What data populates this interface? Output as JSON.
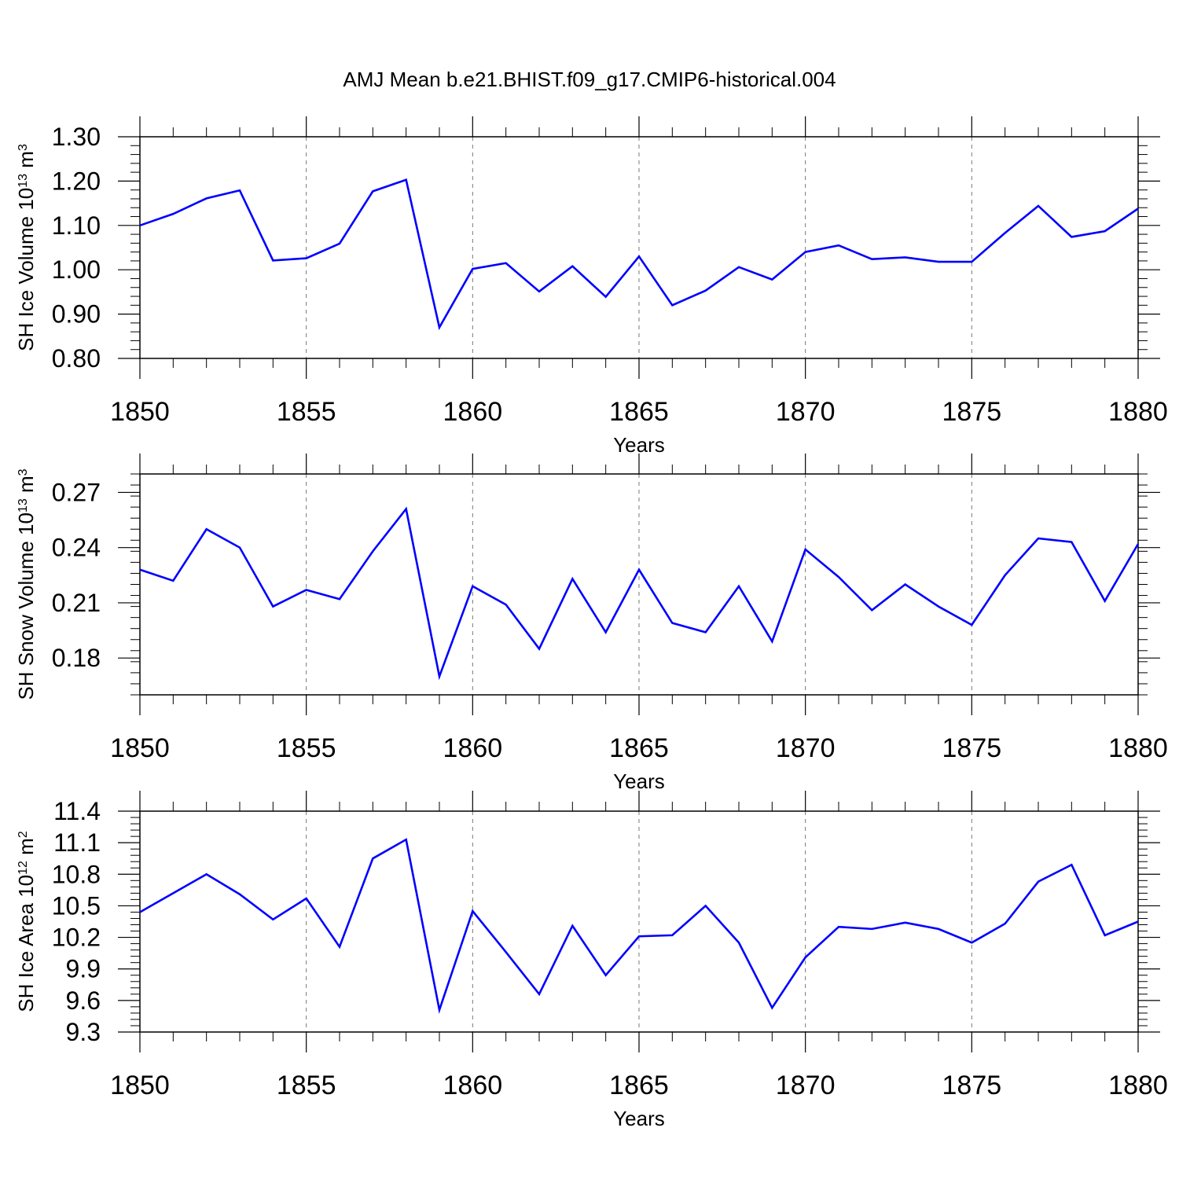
{
  "figure": {
    "title": "AMJ Mean b.e21.BHIST.f09_g17.CMIP6-historical.004"
  },
  "chart_data": [
    {
      "type": "line",
      "ylabel": {
        "main": "SH Ice Volume 10",
        "exp": "13",
        "unit": " m",
        "unit_exp": "3"
      },
      "xlabel": "Years",
      "xlim": [
        1850,
        1880
      ],
      "ylim": [
        0.8,
        1.3
      ],
      "yticks": [
        0.8,
        0.9,
        1.0,
        1.1,
        1.2,
        1.3
      ],
      "ytick_labels": [
        "0.80",
        "0.90",
        "1.00",
        "1.10",
        "1.20",
        "1.30"
      ],
      "xticks": [
        1850,
        1855,
        1860,
        1865,
        1870,
        1875,
        1880
      ],
      "xtick_labels": [
        "1850",
        "1855",
        "1860",
        "1865",
        "1870",
        "1875",
        "1880"
      ],
      "grid": "x-dashed",
      "color": "#0000ff",
      "x": [
        1850,
        1851,
        1852,
        1853,
        1854,
        1855,
        1856,
        1857,
        1858,
        1859,
        1860,
        1861,
        1862,
        1863,
        1864,
        1865,
        1866,
        1867,
        1868,
        1869,
        1870,
        1871,
        1872,
        1873,
        1874,
        1875,
        1876,
        1877,
        1878,
        1879,
        1880
      ],
      "values": [
        1.1,
        1.126,
        1.161,
        1.179,
        1.021,
        1.026,
        1.059,
        1.177,
        1.203,
        0.87,
        1.002,
        1.015,
        0.951,
        1.008,
        0.939,
        1.03,
        0.92,
        0.953,
        1.006,
        0.978,
        1.04,
        1.055,
        1.024,
        1.028,
        1.018,
        1.018,
        1.083,
        1.144,
        1.074,
        1.087,
        1.138
      ]
    },
    {
      "type": "line",
      "ylabel": {
        "main": "SH Snow Volume 10",
        "exp": "13",
        "unit": " m",
        "unit_exp": "3"
      },
      "xlabel": "Years",
      "xlim": [
        1850,
        1880
      ],
      "ylim": [
        0.16,
        0.28
      ],
      "yticks": [
        0.18,
        0.21,
        0.24,
        0.27
      ],
      "ytick_labels": [
        "0.18",
        "0.21",
        "0.24",
        "0.27"
      ],
      "xticks": [
        1850,
        1855,
        1860,
        1865,
        1870,
        1875,
        1880
      ],
      "xtick_labels": [
        "1850",
        "1855",
        "1860",
        "1865",
        "1870",
        "1875",
        "1880"
      ],
      "grid": "x-dashed",
      "color": "#0000ff",
      "x": [
        1850,
        1851,
        1852,
        1853,
        1854,
        1855,
        1856,
        1857,
        1858,
        1859,
        1860,
        1861,
        1862,
        1863,
        1864,
        1865,
        1866,
        1867,
        1868,
        1869,
        1870,
        1871,
        1872,
        1873,
        1874,
        1875,
        1876,
        1877,
        1878,
        1879,
        1880
      ],
      "values": [
        0.228,
        0.222,
        0.25,
        0.24,
        0.208,
        0.217,
        0.212,
        0.238,
        0.261,
        0.17,
        0.219,
        0.209,
        0.185,
        0.223,
        0.194,
        0.228,
        0.199,
        0.194,
        0.219,
        0.189,
        0.239,
        0.224,
        0.206,
        0.22,
        0.208,
        0.198,
        0.225,
        0.245,
        0.243,
        0.211,
        0.242
      ]
    },
    {
      "type": "line",
      "ylabel": {
        "main": "SH Ice Area 10",
        "exp": "12",
        "unit": " m",
        "unit_exp": "2"
      },
      "xlabel": "Years",
      "xlim": [
        1850,
        1880
      ],
      "ylim": [
        9.3,
        11.4
      ],
      "yticks": [
        9.3,
        9.6,
        9.9,
        10.2,
        10.5,
        10.8,
        11.1,
        11.4
      ],
      "ytick_labels": [
        "9.3",
        "9.6",
        "9.9",
        "10.2",
        "10.5",
        "10.8",
        "11.1",
        "11.4"
      ],
      "xticks": [
        1850,
        1855,
        1860,
        1865,
        1870,
        1875,
        1880
      ],
      "xtick_labels": [
        "1850",
        "1855",
        "1860",
        "1865",
        "1870",
        "1875",
        "1880"
      ],
      "grid": "x-dashed",
      "color": "#0000ff",
      "x": [
        1850,
        1851,
        1852,
        1853,
        1854,
        1855,
        1856,
        1857,
        1858,
        1859,
        1860,
        1861,
        1862,
        1863,
        1864,
        1865,
        1866,
        1867,
        1868,
        1869,
        1870,
        1871,
        1872,
        1873,
        1874,
        1875,
        1876,
        1877,
        1878,
        1879,
        1880
      ],
      "values": [
        10.44,
        10.62,
        10.8,
        10.61,
        10.37,
        10.57,
        10.11,
        10.95,
        11.13,
        9.51,
        10.45,
        10.06,
        9.66,
        10.31,
        9.84,
        10.21,
        10.22,
        10.5,
        10.15,
        9.53,
        10.01,
        10.3,
        10.28,
        10.34,
        10.28,
        10.15,
        10.33,
        10.73,
        10.89,
        10.22,
        10.35
      ]
    }
  ]
}
